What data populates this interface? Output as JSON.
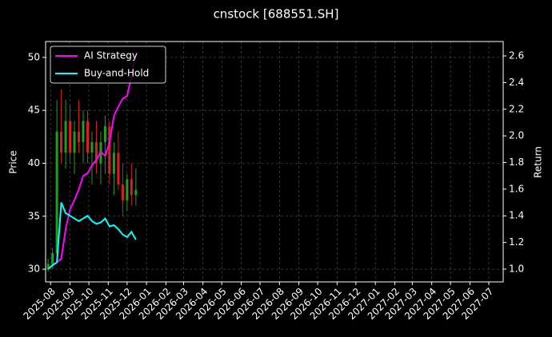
{
  "chart_data": {
    "type": "candlestick_returns",
    "title": "cnstock [688551.SH]",
    "ylabel": "Price",
    "y2label": "Return",
    "x": [
      "2025-07-28",
      "2025-08-04",
      "2025-08-11",
      "2025-08-18",
      "2025-08-25",
      "2025-09-01",
      "2025-09-08",
      "2025-09-15",
      "2025-09-22",
      "2025-09-29",
      "2025-10-06",
      "2025-10-13",
      "2025-10-20",
      "2025-10-27",
      "2025-11-03",
      "2025-11-10",
      "2025-11-17",
      "2025-11-24",
      "2025-12-01",
      "2025-12-08",
      "2025-12-15"
    ],
    "candles": {
      "up_color": "#1f9e1f",
      "down_color": "#d62020",
      "open": [
        30,
        30.5,
        31.5,
        43,
        41,
        44,
        41,
        43,
        42,
        44,
        41,
        42,
        40,
        42,
        43.5,
        39,
        41,
        38,
        36.5,
        38.5,
        37
      ],
      "high": [
        31,
        32,
        46,
        47,
        46,
        45.5,
        44,
        46,
        45,
        45,
        43,
        44,
        43,
        44.5,
        44,
        42,
        43,
        40,
        39,
        40,
        39.5
      ],
      "low": [
        29.8,
        30,
        31,
        40,
        39.5,
        40,
        39,
        41,
        40,
        40,
        38,
        39,
        38,
        39,
        38,
        37,
        37.5,
        35,
        35.5,
        36,
        36
      ],
      "close": [
        30.5,
        31.5,
        43,
        41,
        44,
        41,
        43,
        42,
        44,
        41,
        42,
        40,
        42,
        43.5,
        39,
        41,
        38,
        36.5,
        38.5,
        37,
        37.5
      ]
    },
    "series": [
      {
        "name": "AI Strategy",
        "color": "#ff00ff",
        "axis": "y2",
        "values": [
          1.0,
          1.03,
          1.05,
          1.08,
          1.3,
          1.45,
          1.52,
          1.6,
          1.7,
          1.72,
          1.78,
          1.82,
          1.88,
          1.85,
          1.95,
          2.15,
          2.22,
          2.28,
          2.3,
          2.45,
          2.62
        ]
      },
      {
        "name": "Buy-and-Hold",
        "color": "#00ffff",
        "axis": "y2",
        "values": [
          1.0,
          1.03,
          1.05,
          1.5,
          1.42,
          1.4,
          1.38,
          1.36,
          1.38,
          1.4,
          1.36,
          1.34,
          1.35,
          1.38,
          1.32,
          1.33,
          1.3,
          1.26,
          1.24,
          1.28,
          1.22
        ]
      }
    ],
    "xlim": [
      "2025-07-24",
      "2027-07-24"
    ],
    "xticks": [
      "2025-08",
      "2025-09",
      "2025-10",
      "2025-11",
      "2025-12",
      "2026-01",
      "2026-02",
      "2026-03",
      "2026-04",
      "2026-05",
      "2026-06",
      "2026-07",
      "2026-08",
      "2026-09",
      "2026-10",
      "2026-11",
      "2026-12",
      "2027-01",
      "2027-02",
      "2027-03",
      "2027-04",
      "2027-05",
      "2027-06",
      "2027-07"
    ],
    "ylim": [
      28.8,
      51.5
    ],
    "yticks": [
      30,
      35,
      40,
      45,
      50
    ],
    "y2lim": [
      0.904,
      2.708
    ],
    "y2ticks": [
      {
        "value": 1.0,
        "label": "1.0"
      },
      {
        "value": 1.2,
        "label": "1.2"
      },
      {
        "value": 1.4,
        "label": "1.4"
      },
      {
        "value": 1.6,
        "label": "1.6"
      },
      {
        "value": 1.8,
        "label": "1.8"
      },
      {
        "value": 2.0,
        "label": "2.0"
      },
      {
        "value": 2.2,
        "label": "2.2"
      },
      {
        "value": 2.4,
        "label": "2.4"
      },
      {
        "value": 2.6,
        "label": "2.6"
      }
    ],
    "grid": true,
    "legend": "upper left"
  }
}
